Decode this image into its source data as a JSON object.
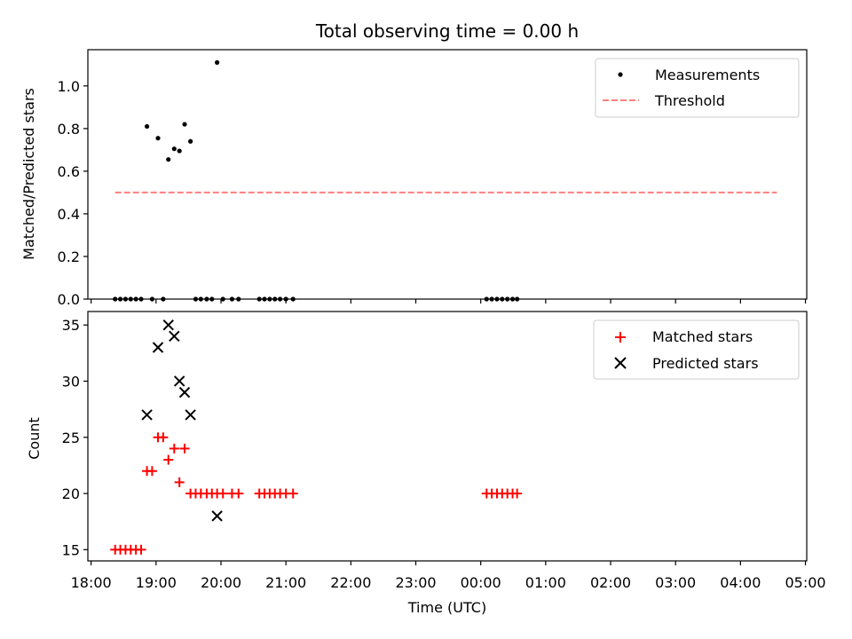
{
  "title": "Total observing time = 0.00 h",
  "xlabel": "Time (UTC)",
  "x_ticks": [
    "18:00",
    "19:00",
    "20:00",
    "21:00",
    "22:00",
    "23:00",
    "00:00",
    "01:00",
    "02:00",
    "03:00",
    "04:00",
    "05:00"
  ],
  "chart_data": [
    {
      "type": "scatter",
      "ylabel": "Matched/Predicted stars",
      "xlim_hours": [
        17.95,
        29.02
      ],
      "ylim": [
        0,
        1.17
      ],
      "y_ticks": [
        0.0,
        0.2,
        0.4,
        0.6,
        0.8,
        1.0
      ],
      "legend_position": "top-right",
      "series": [
        {
          "name": "Measurements",
          "marker": "dot",
          "color": "#000000",
          "points": [
            [
              18.37,
              0
            ],
            [
              18.45,
              0
            ],
            [
              18.53,
              0
            ],
            [
              18.61,
              0
            ],
            [
              18.69,
              0
            ],
            [
              18.77,
              0
            ],
            [
              18.86,
              0.81
            ],
            [
              18.94,
              0
            ],
            [
              19.03,
              0.755
            ],
            [
              19.11,
              0
            ],
            [
              19.19,
              0.655
            ],
            [
              19.28,
              0.705
            ],
            [
              19.36,
              0.695
            ],
            [
              19.44,
              0.82
            ],
            [
              19.53,
              0.74
            ],
            [
              19.61,
              0
            ],
            [
              19.69,
              0
            ],
            [
              19.78,
              0
            ],
            [
              19.86,
              0
            ],
            [
              19.94,
              1.11
            ],
            [
              20.03,
              0
            ],
            [
              20.17,
              0
            ],
            [
              20.27,
              0
            ],
            [
              20.59,
              0
            ],
            [
              20.67,
              0
            ],
            [
              20.75,
              0
            ],
            [
              20.83,
              0
            ],
            [
              20.91,
              0
            ],
            [
              21.0,
              0
            ],
            [
              21.11,
              0
            ],
            [
              24.09,
              0
            ],
            [
              24.17,
              0
            ],
            [
              24.25,
              0
            ],
            [
              24.33,
              0
            ],
            [
              24.41,
              0
            ],
            [
              24.49,
              0
            ],
            [
              24.56,
              0
            ]
          ]
        },
        {
          "name": "Threshold",
          "marker": "dashed-line",
          "color": "#ff7f7f",
          "points": [
            [
              18.37,
              0.5
            ],
            [
              28.56,
              0.5
            ]
          ]
        }
      ]
    },
    {
      "type": "scatter",
      "ylabel": "Count",
      "xlim_hours": [
        17.95,
        29.02
      ],
      "ylim": [
        14.0,
        36.2
      ],
      "y_ticks": [
        15,
        20,
        25,
        30,
        35
      ],
      "legend_position": "top-right",
      "series": [
        {
          "name": "Matched stars",
          "marker": "plus",
          "color": "#ff0000",
          "points": [
            [
              18.37,
              15
            ],
            [
              18.45,
              15
            ],
            [
              18.53,
              15
            ],
            [
              18.61,
              15
            ],
            [
              18.69,
              15
            ],
            [
              18.77,
              15
            ],
            [
              18.86,
              22
            ],
            [
              18.94,
              22
            ],
            [
              19.03,
              25
            ],
            [
              19.11,
              25
            ],
            [
              19.19,
              23
            ],
            [
              19.28,
              24
            ],
            [
              19.36,
              21
            ],
            [
              19.44,
              24
            ],
            [
              19.53,
              20
            ],
            [
              19.61,
              20
            ],
            [
              19.69,
              20
            ],
            [
              19.78,
              20
            ],
            [
              19.86,
              20
            ],
            [
              19.94,
              20
            ],
            [
              20.03,
              20
            ],
            [
              20.17,
              20
            ],
            [
              20.27,
              20
            ],
            [
              20.59,
              20
            ],
            [
              20.67,
              20
            ],
            [
              20.75,
              20
            ],
            [
              20.83,
              20
            ],
            [
              20.91,
              20
            ],
            [
              21.0,
              20
            ],
            [
              21.11,
              20
            ],
            [
              24.09,
              20
            ],
            [
              24.17,
              20
            ],
            [
              24.25,
              20
            ],
            [
              24.33,
              20
            ],
            [
              24.41,
              20
            ],
            [
              24.49,
              20
            ],
            [
              24.56,
              20
            ]
          ]
        },
        {
          "name": "Predicted stars",
          "marker": "x",
          "color": "#000000",
          "points": [
            [
              18.86,
              27
            ],
            [
              19.03,
              33
            ],
            [
              19.19,
              35
            ],
            [
              19.28,
              34
            ],
            [
              19.36,
              30
            ],
            [
              19.44,
              29
            ],
            [
              19.53,
              27
            ],
            [
              19.94,
              18
            ]
          ]
        }
      ]
    }
  ]
}
